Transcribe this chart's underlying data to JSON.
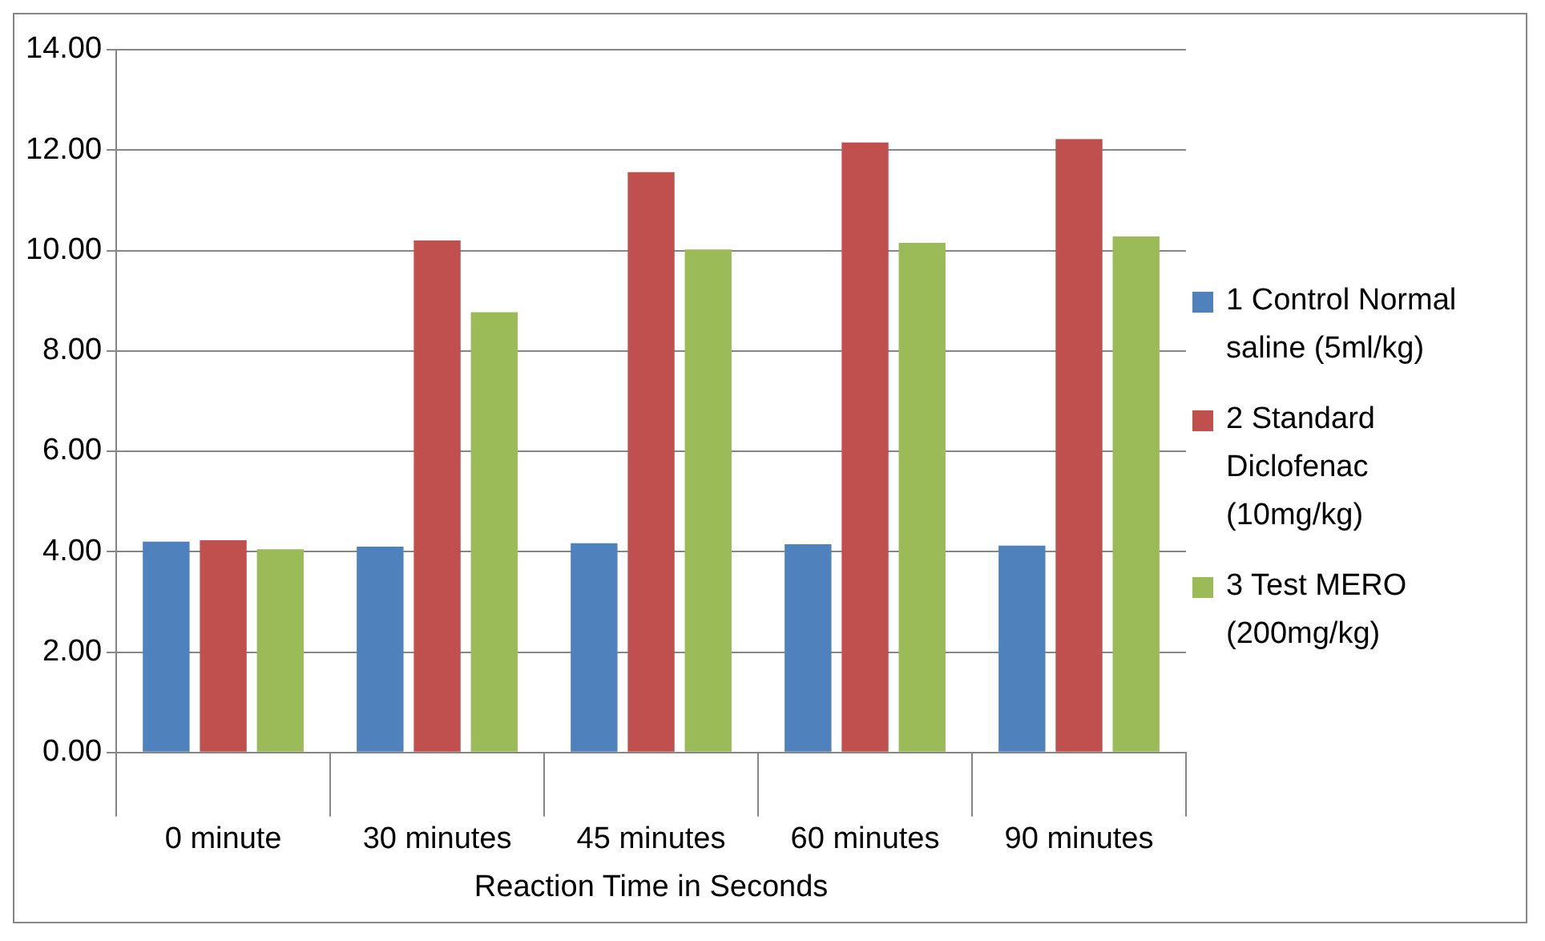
{
  "chart_data": {
    "type": "bar",
    "xlabel": "Reaction Time in Seconds",
    "categories": [
      "0 minute",
      "30 minutes",
      "45 minutes",
      "60 minutes",
      "90 minutes"
    ],
    "series": [
      {
        "name": "1 Control Normal saline (5ml/kg)",
        "color": "#4f81bd",
        "values": [
          4.2,
          4.1,
          4.17,
          4.15,
          4.12
        ]
      },
      {
        "name": "2 Standard Diclofenac (10mg/kg)",
        "color": "#c0504d",
        "values": [
          4.23,
          10.2,
          11.56,
          12.15,
          12.22
        ]
      },
      {
        "name": "3 Test MERO (200mg/kg)",
        "color": "#9bbb59",
        "values": [
          4.05,
          8.77,
          10.02,
          10.15,
          10.28
        ]
      }
    ],
    "ylim": [
      0,
      14
    ],
    "yticks": [
      {
        "value": 0,
        "label": "0.00"
      },
      {
        "value": 2,
        "label": "2.00"
      },
      {
        "value": 4,
        "label": "4.00"
      },
      {
        "value": 6,
        "label": "6.00"
      },
      {
        "value": 8,
        "label": "8.00"
      },
      {
        "value": 10,
        "label": "10.00"
      },
      {
        "value": 12,
        "label": "12.00"
      },
      {
        "value": 14,
        "label": "14.00"
      }
    ],
    "grid": "y",
    "legend": "right"
  }
}
